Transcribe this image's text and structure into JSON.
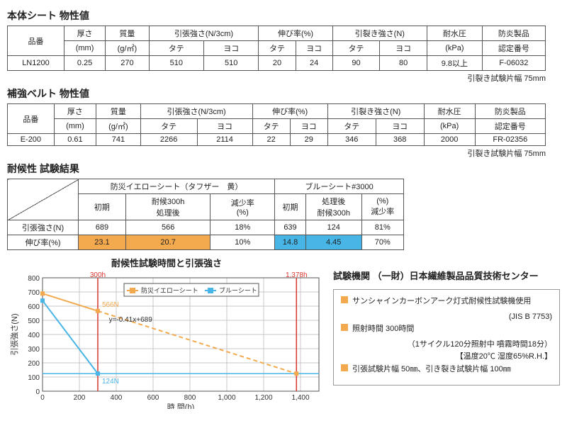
{
  "section1": {
    "title": "本体シート 物性値",
    "cols": {
      "code": "品番",
      "thick": "厚さ",
      "mass": "質量",
      "tensile": "引張強さ(N/3cm)",
      "elong": "伸び率(%)",
      "tear": "引裂き強さ(N)",
      "water": "耐水圧",
      "fire": "防炎製品",
      "thick_u": "(mm)",
      "mass_u": "(g/㎡)",
      "water_u": "(kPa)",
      "fire_u": "認定番号",
      "tate": "タテ",
      "yoko": "ヨコ"
    },
    "row": {
      "code": "LN1200",
      "thick": "0.25",
      "mass": "270",
      "t1": "510",
      "t2": "510",
      "e1": "20",
      "e2": "24",
      "r1": "90",
      "r2": "80",
      "w": "9.8以上",
      "f": "F-06032"
    },
    "note": "引裂き試験片幅 75mm"
  },
  "section2": {
    "title": "補強ベルト 物性値",
    "row": {
      "code": "E-200",
      "thick": "0.61",
      "mass": "741",
      "t1": "2266",
      "t2": "2114",
      "e1": "22",
      "e2": "29",
      "r1": "346",
      "r2": "368",
      "w": "2000",
      "f": "FR-02356"
    },
    "note": "引裂き試験片幅 75mm"
  },
  "section3": {
    "title": "耐候性 試験結果",
    "head": {
      "sheetA": "防災イエローシート（タフザー　黄）",
      "sheetB": "ブルーシート#3000",
      "init": "初期",
      "after": "耐候300h\n処理後",
      "dec": "減少率\n(%)",
      "afterB": "処理後\n耐候300h",
      "decB": "(%)\n減少率",
      "tensile": "引張強さ(N)",
      "elong": "伸び率(%)"
    },
    "rows": [
      {
        "label": "引張強さ(N)",
        "a1": "689",
        "a2": "566",
        "a3": "18%",
        "b1": "639",
        "b2": "124",
        "b3": "81%"
      },
      {
        "label": "伸び率(%)",
        "a1": "23.1",
        "a2": "20.7",
        "a3": "10%",
        "b1": "14.8",
        "b2": "4.45",
        "b3": "70%"
      }
    ]
  },
  "chart": {
    "title": "耐候性試験時間と引張強さ",
    "ylabel": "引張強さ(N)",
    "xlabel": "時 間(h)",
    "ylim": [
      0,
      800
    ],
    "ytick": 100,
    "xlim": [
      0,
      1500
    ],
    "xtick": 200,
    "marker_300": "300h",
    "marker_1378": "1,378h",
    "legendA": "防災イエローシート",
    "legendB": "ブルーシート",
    "colorA": "#f3a94e",
    "colorB": "#47b5e6",
    "colorRed": "#d9362e",
    "grid": "#c8c8c8",
    "axis": "#555",
    "seriesA": {
      "x": [
        0,
        300
      ],
      "y": [
        689,
        566
      ]
    },
    "seriesA_dash": {
      "x": [
        300,
        1378
      ],
      "y": [
        566,
        124
      ]
    },
    "seriesB": {
      "x": [
        0,
        300
      ],
      "y": [
        639,
        124
      ]
    },
    "seriesB_flat": {
      "y": 124
    },
    "labelA": "566N",
    "labelB": "124N",
    "eq": "y=-0.41x+689"
  },
  "info": {
    "institution": "試験機関  （一財）日本繊維製品品質技術センター",
    "items": [
      {
        "t": "サンシャインカーボンアーク灯式耐候性試験機使用",
        "sub": "(JIS B 7753)"
      },
      {
        "t": "照射時間 300時間",
        "sub": "（1サイクル120分照射中 噴霧時間18分）\n【温度20℃ 湿度65%R.H.】"
      },
      {
        "t": "引張試験片幅 50㎜、引き裂き試験片幅 100㎜",
        "sub": ""
      }
    ]
  }
}
